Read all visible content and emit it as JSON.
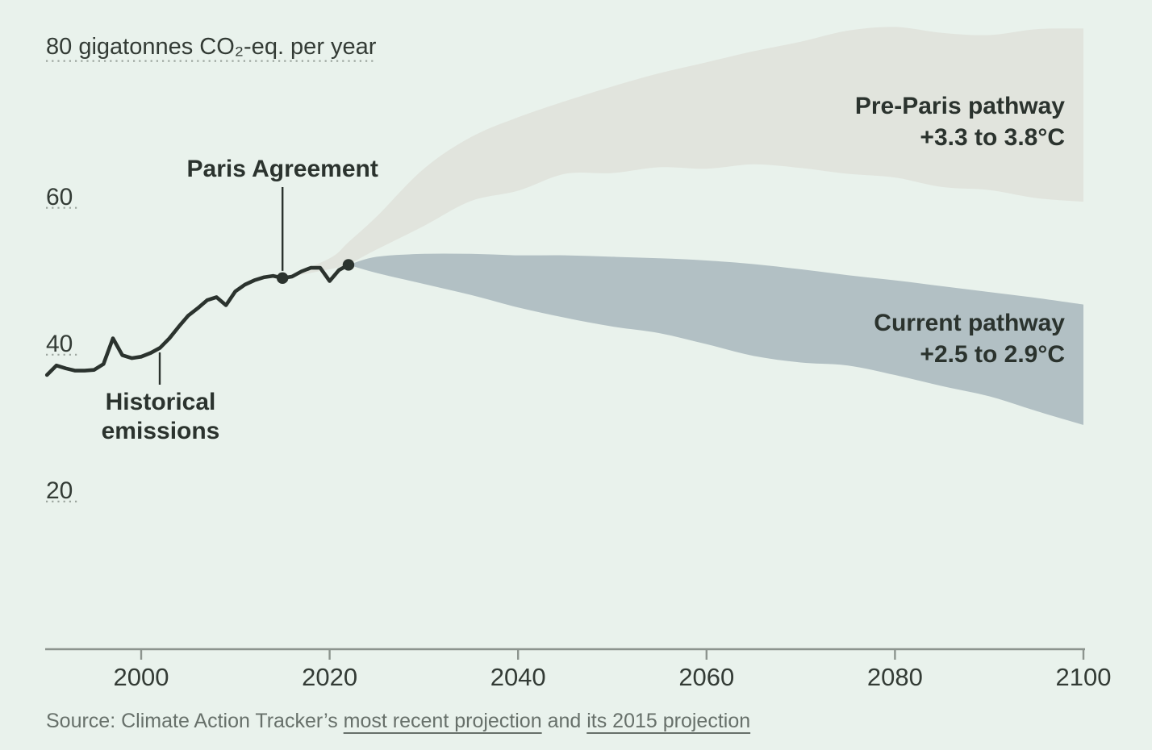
{
  "colors": {
    "background": "#e9f2ec",
    "band_gray": "#e1e4dd",
    "band_blue": "#b2c0c4",
    "line_dark": "#2b332e",
    "axis_gray": "#8c948e",
    "dotted_gray": "#9da69f",
    "text_dark": "#333b35",
    "text_muted": "#67706a"
  },
  "chart_data": {
    "type": "area",
    "title": "80 gigatonnes CO₂-eq. per year",
    "x_axis": {
      "tick_years": [
        2000,
        2020,
        2040,
        2060,
        2080,
        2100
      ],
      "tick_labels": [
        "2000",
        "2020",
        "2040",
        "2060",
        "2080",
        "2100"
      ]
    },
    "y_axis": {
      "tick_values": [
        60,
        40,
        20
      ],
      "tick_labels": [
        "60",
        "40",
        "20"
      ],
      "title_value": 80,
      "range": [
        0,
        88
      ]
    },
    "historical": {
      "label": "Historical emissions",
      "years": [
        1990,
        1991,
        1992,
        1993,
        1994,
        1995,
        1996,
        1997,
        1998,
        1999,
        2000,
        2001,
        2002,
        2003,
        2004,
        2005,
        2006,
        2007,
        2008,
        2009,
        2010,
        2011,
        2012,
        2013,
        2014,
        2015,
        2016,
        2017,
        2018,
        2019,
        2020,
        2021,
        2022
      ],
      "values": [
        36.9,
        38.2,
        37.8,
        37.5,
        37.5,
        37.6,
        38.4,
        41.9,
        39.6,
        39.2,
        39.4,
        39.9,
        40.6,
        41.9,
        43.5,
        45.0,
        46.0,
        47.1,
        47.5,
        46.4,
        48.3,
        49.2,
        49.8,
        50.2,
        50.4,
        50.1,
        50.3,
        51.0,
        51.5,
        51.5,
        49.7,
        51.2,
        51.9
      ]
    },
    "paris_annotation": {
      "label": "Paris Agreement",
      "year": 2015,
      "value": 50.1
    },
    "end_point": {
      "year": 2022,
      "value": 51.9
    },
    "pre_paris": {
      "label": "Pre-Paris pathway",
      "range_label": "+3.3 to 3.8°C",
      "years": [
        2015,
        2020,
        2022,
        2025,
        2030,
        2035,
        2040,
        2045,
        2050,
        2055,
        2060,
        2065,
        2070,
        2075,
        2080,
        2085,
        2090,
        2095,
        2100
      ],
      "low": [
        50.1,
        51.3,
        52.0,
        54.0,
        57.2,
        60.6,
        62.0,
        64.3,
        64.4,
        65.2,
        65.0,
        65.6,
        65.1,
        64.3,
        63.8,
        62.5,
        62.1,
        61.0,
        60.5
      ],
      "high": [
        50.1,
        52.8,
        55.0,
        58.5,
        65.0,
        69.3,
        72.0,
        74.2,
        76.2,
        78.0,
        79.5,
        81.0,
        82.3,
        83.8,
        84.3,
        83.5,
        83.2,
        84.0,
        84.1
      ]
    },
    "current": {
      "label": "Current pathway",
      "range_label": "+2.5 to 2.9°C",
      "years": [
        2022,
        2025,
        2030,
        2035,
        2040,
        2045,
        2050,
        2055,
        2060,
        2065,
        2070,
        2075,
        2080,
        2085,
        2090,
        2095,
        2100
      ],
      "low": [
        51.9,
        50.8,
        49.3,
        47.8,
        46.1,
        44.7,
        43.5,
        42.6,
        41.1,
        39.5,
        38.6,
        38.2,
        36.9,
        35.4,
        34.0,
        32.0,
        30.1
      ],
      "high": [
        51.9,
        53.0,
        53.4,
        53.4,
        53.2,
        53.2,
        53.0,
        52.8,
        52.5,
        52.0,
        51.3,
        50.5,
        49.8,
        49.0,
        48.2,
        47.4,
        46.5
      ]
    }
  },
  "source": {
    "prefix": "Source: Climate Action Tracker’s ",
    "link1": "most recent projection",
    "middle": " and ",
    "link2": "its 2015 projection"
  }
}
